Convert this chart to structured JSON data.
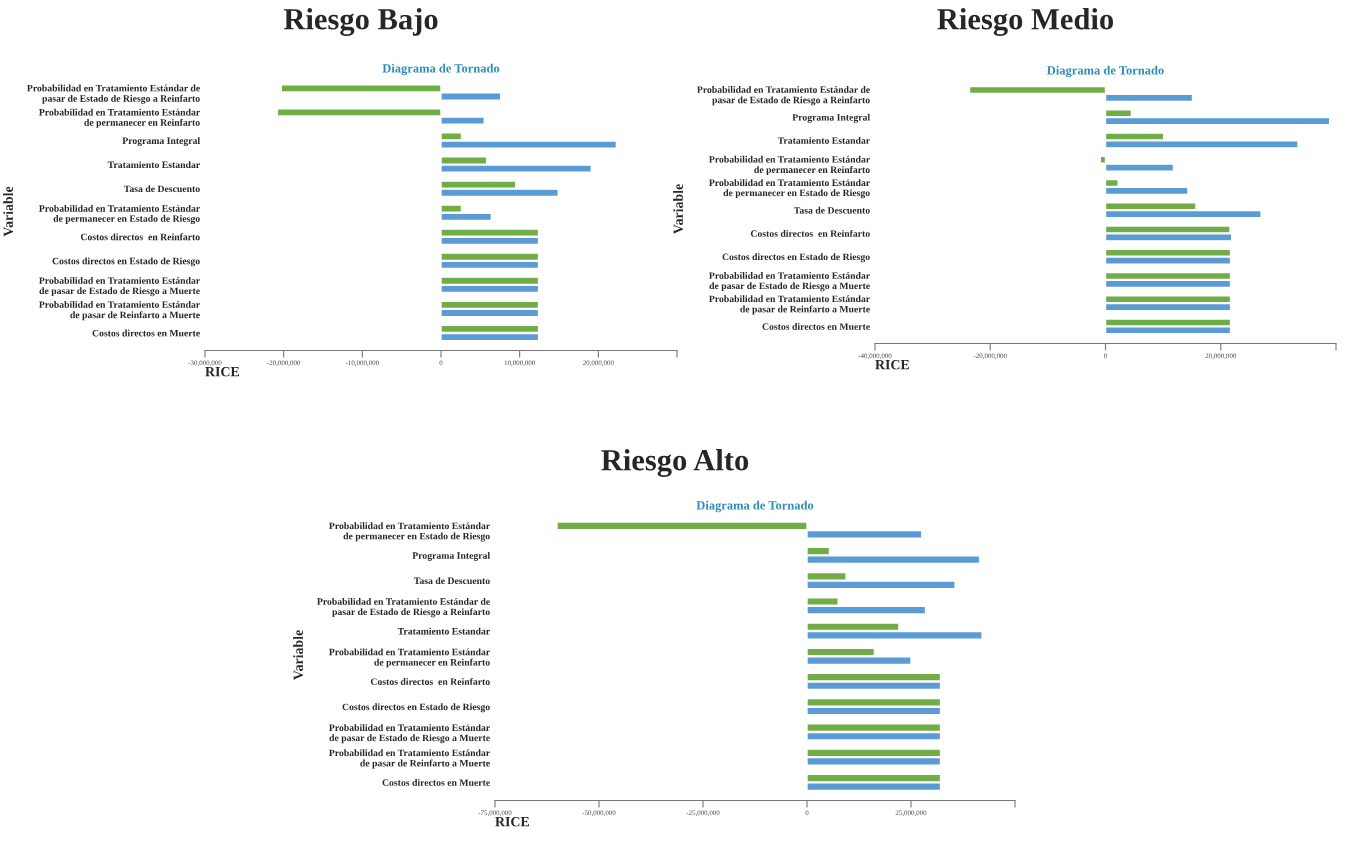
{
  "chart_data": [
    {
      "type": "bar",
      "orientation": "horizontal",
      "title": "Riesgo Bajo",
      "subtitle": "Diagrama de Tornado",
      "xlabel": "RICE",
      "ylabel": "Variable",
      "categories": [
        "Probabilidad en Tratamiento Estándar de\npasar de Estado de Riesgo a Reinfarto",
        "Probabilidad en Tratamiento Estándar\nde permanecer en Reinfarto",
        "Programa Integral",
        "Tratamiento Estandar",
        "Tasa de Descuento",
        "Probabilidad en Tratamiento Estándar\nde permanecer en Estado de Riesgo",
        "Costos directos  en Reinfarto",
        "Costos directos en Estado de Riesgo",
        "Probabilidad en Tratamiento Estándar\nde pasar de Estado de Riesgo a Muerte",
        "Probabilidad en Tratamiento Estándar\nde pasar de Reinfarto a Muerte",
        "Costos directos en Muerte"
      ],
      "series": [
        {
          "color": "#70ad47",
          "values": [
            -20300000,
            -20800000,
            2600000,
            5800000,
            9500000,
            2600000,
            12400000,
            12400000,
            12400000,
            12400000,
            12400000
          ]
        },
        {
          "color": "#5b9bd5",
          "values": [
            7600000,
            5500000,
            22300000,
            19100000,
            14900000,
            6400000,
            12400000,
            12400000,
            12400000,
            12400000,
            12400000
          ]
        }
      ],
      "xlim": [
        -30000000,
        30000000
      ],
      "xticks": [
        {
          "value": -30000000,
          "label": "-30,000,000"
        },
        {
          "value": -20000000,
          "label": "-20,000,000"
        },
        {
          "value": -10000000,
          "label": "-10,000,000"
        },
        0,
        {
          "value": 10000000,
          "label": "10,000,000"
        },
        {
          "value": 20000000,
          "label": "20,000,000"
        },
        {
          "value": 30000000,
          "label": null
        }
      ],
      "grid": false
    },
    {
      "type": "bar",
      "orientation": "horizontal",
      "title": "Riesgo Medio",
      "subtitle": "Diagrama de Tornado",
      "xlabel": "RICE",
      "ylabel": "Variable",
      "categories": [
        "Probabilidad en Tratamiento Estándar de\npasar de Estado de Riesgo a Reinfarto",
        "Programa Integral",
        "Tratamiento Estandar",
        "Probabilidad en Tratamiento Estándar\nde permanecer en Reinfarto",
        "Probabilidad en Tratamiento Estándar\nde permanecer en Estado de Riesgo",
        "Tasa de Descuento",
        "Costos directos  en Reinfarto",
        "Costos directos en Estado de Riesgo",
        "Probabilidad en Tratamiento Estándar\nde pasar de Estado de Riesgo a Muerte",
        "Probabilidad en Tratamiento Estándar\nde pasar de Reinfarto a Muerte",
        "Costos directos en Muerte"
      ],
      "series": [
        {
          "color": "#70ad47",
          "values": [
            -23600000,
            4500000,
            10100000,
            -900000,
            2200000,
            15700000,
            21600000,
            21700000,
            21700000,
            21700000,
            21700000
          ]
        },
        {
          "color": "#5b9bd5",
          "values": [
            15100000,
            38900000,
            33400000,
            11800000,
            14300000,
            27000000,
            21900000,
            21700000,
            21700000,
            21700000,
            21700000
          ]
        }
      ],
      "xlim": [
        -40000000,
        40000000
      ],
      "xticks": [
        {
          "value": -40000000,
          "label": "-40,000,000"
        },
        {
          "value": -20000000,
          "label": "-20,000,000"
        },
        0,
        {
          "value": 20000000,
          "label": "20,000,000"
        },
        {
          "value": 40000000,
          "label": null
        }
      ],
      "grid": false
    },
    {
      "type": "bar",
      "orientation": "horizontal",
      "title": "Riesgo Alto",
      "subtitle": "Diagrama de Tornado",
      "xlabel": "RICE",
      "ylabel": "Variable",
      "categories": [
        "Probabilidad en Tratamiento Estándar\nde permanecer en Estado de Riesgo",
        "Programa Integral",
        "Tasa de Descuento",
        "Probabilidad en Tratamiento Estándar de\npasar de Estado de Riesgo a Reinfarto",
        "Tratamiento Estandar",
        "Probabilidad en Tratamiento Estándar\nde permanecer en Reinfarto",
        "Costos directos  en Reinfarto",
        "Costos directos en Estado de Riesgo",
        "Probabilidad en Tratamiento Estándar\nde pasar de Estado de Riesgo a Muerte",
        "Probabilidad en Tratamiento Estándar\nde pasar de Reinfarto a Muerte",
        "Costos directos en Muerte"
      ],
      "series": [
        {
          "color": "#70ad47",
          "values": [
            -60100000,
            5400000,
            9400000,
            7500000,
            22100000,
            16200000,
            32100000,
            32100000,
            32100000,
            32100000,
            32100000
          ]
        },
        {
          "color": "#5b9bd5",
          "values": [
            27600000,
            41500000,
            35600000,
            28500000,
            42100000,
            25000000,
            32100000,
            32100000,
            32100000,
            32100000,
            32100000
          ]
        }
      ],
      "xlim": [
        -75000000,
        50000000
      ],
      "xticks": [
        {
          "value": -75000000,
          "label": "-75,000,000"
        },
        {
          "value": -50000000,
          "label": "-50,000,000"
        },
        {
          "value": -25000000,
          "label": "-25,000,000"
        },
        0,
        {
          "value": 25000000,
          "label": "25,000,000"
        },
        {
          "value": 50000000,
          "label": null
        }
      ],
      "grid": false
    }
  ]
}
